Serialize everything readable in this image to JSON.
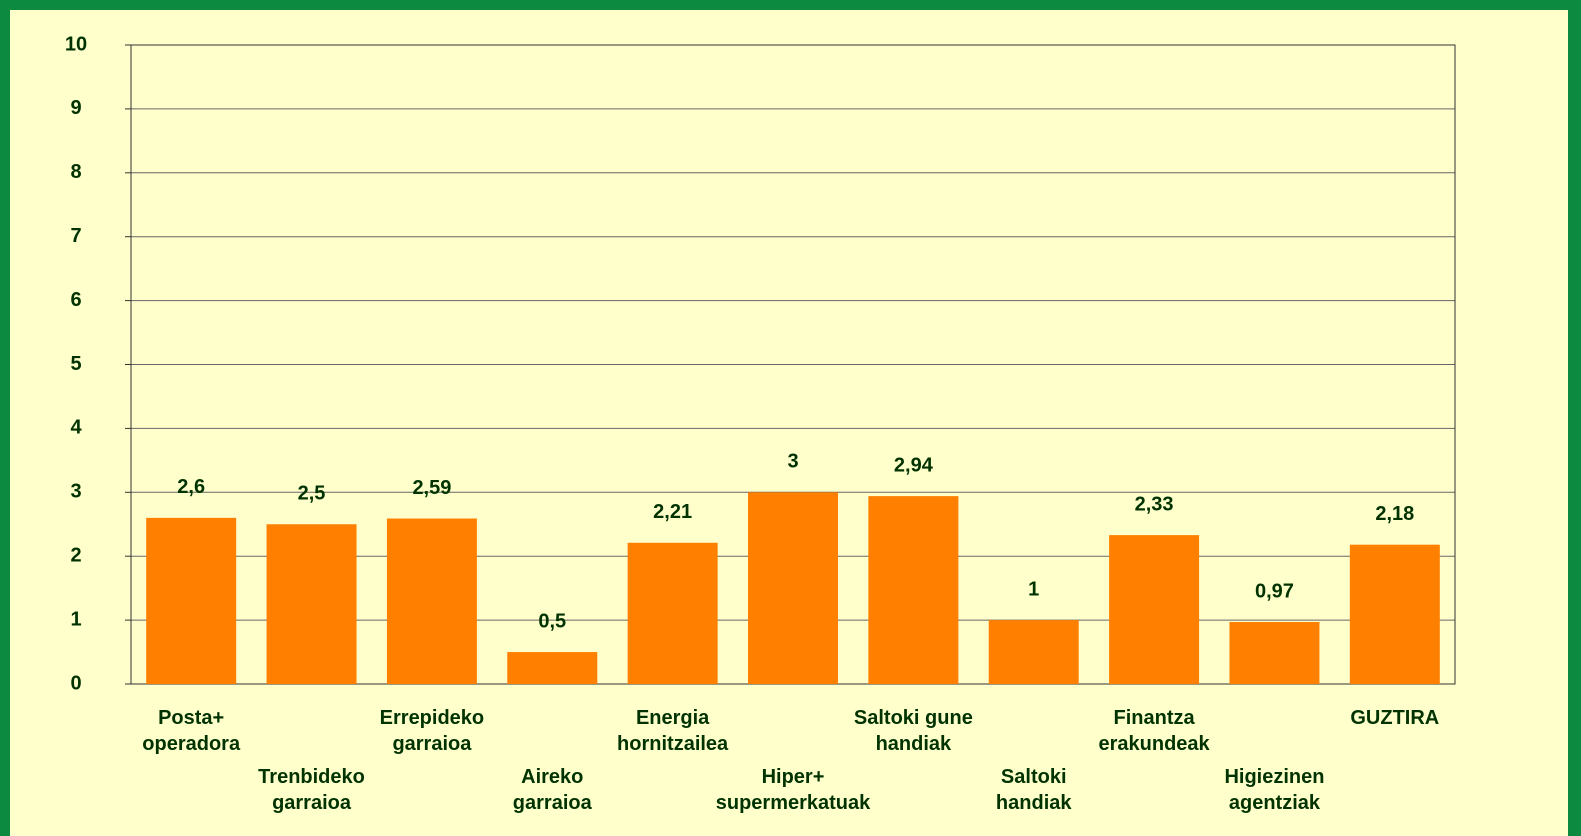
{
  "chart_data": {
    "type": "bar",
    "categories": [
      "Posta+\noperadora",
      "Trenbideko\ngarraioa",
      "Errepideko\ngarraioa",
      "Aireko\ngarraioa",
      "Energia\nhornitzailea",
      "Hiper+\nsupermerkatuak",
      "Saltoki gune\nhandiak",
      "Saltoki\nhandiak",
      "Finantza\nerakundeak",
      "Higiezinen\nagentziak",
      "GUZTIRA"
    ],
    "values": [
      2.6,
      2.5,
      2.59,
      0.5,
      2.21,
      3,
      2.94,
      1,
      2.33,
      0.97,
      2.18
    ],
    "value_labels": [
      "2,6",
      "2,5",
      "2,59",
      "0,5",
      "2,21",
      "3",
      "2,94",
      "1",
      "2,33",
      "0,97",
      "2,18"
    ],
    "color": "#ff8000",
    "ylim": [
      0,
      10
    ],
    "yticks": [
      0,
      1,
      2,
      3,
      4,
      5,
      6,
      7,
      8,
      9,
      10
    ],
    "grid": true
  }
}
